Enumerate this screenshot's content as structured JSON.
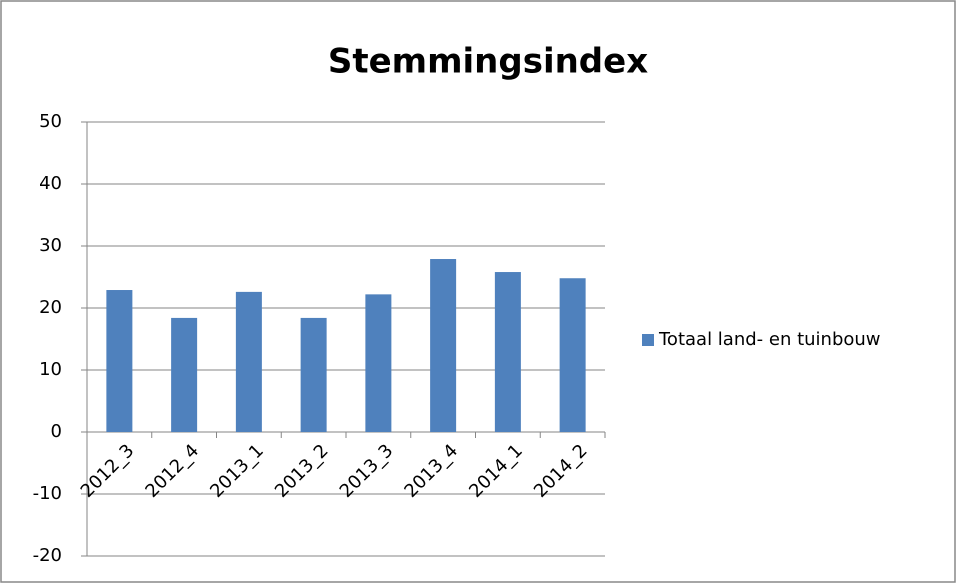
{
  "chart_data": {
    "type": "bar",
    "title": "Stemmingsindex",
    "categories": [
      "2012_3",
      "2012_4",
      "2013_1",
      "2013_2",
      "2013_3",
      "2013_4",
      "2014_1",
      "2014_2"
    ],
    "series": [
      {
        "name": "Totaal land- en tuinbouw",
        "color": "#4f81bd",
        "values": [
          22.9,
          18.4,
          22.6,
          18.4,
          22.2,
          27.9,
          25.8,
          24.8
        ]
      }
    ],
    "ylim": [
      -20,
      50
    ],
    "yticks": [
      -20,
      -10,
      0,
      10,
      20,
      30,
      40,
      50
    ],
    "grid": true,
    "legend": "right"
  }
}
